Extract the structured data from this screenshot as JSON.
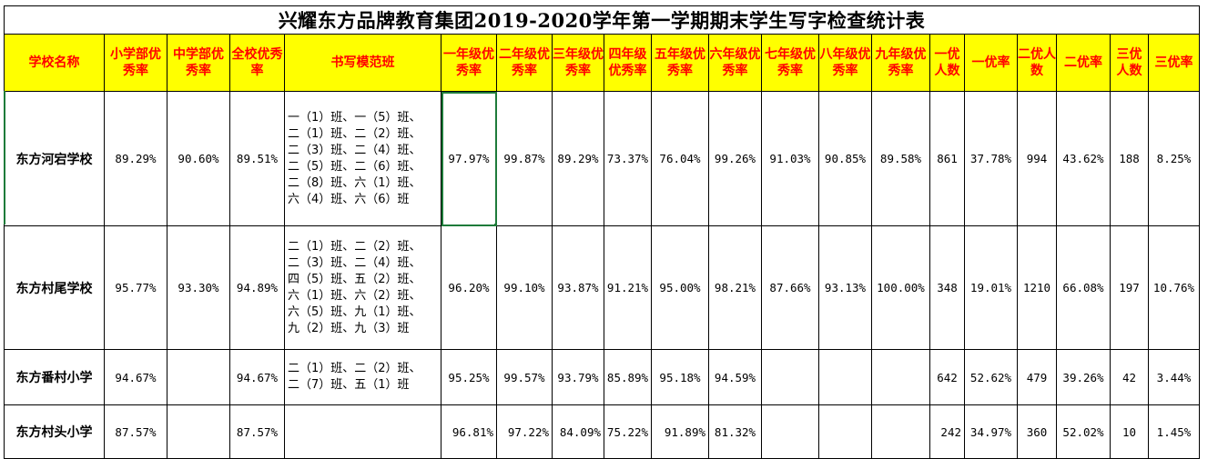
{
  "title": "兴耀东方品牌教育集团2019-2020学年第一学期期末学生写字检查统计表",
  "headers": [
    "学校名称",
    "小学部优秀率",
    "中学部优秀率",
    "全校优秀率",
    "书写模范班",
    "一年级优秀率",
    "二年级优秀率",
    "三年级优秀率",
    "四年级优秀率",
    "五年级优秀率",
    "六年级优秀率",
    "七年级优秀率",
    "八年级优秀率",
    "九年级优秀率",
    "一优人数",
    "一优率",
    "二优人数",
    "二优率",
    "三优人数",
    "三优率"
  ],
  "rows": [
    {
      "school": "东方河宕学校",
      "primary": "89.29%",
      "middle": "90.60%",
      "whole": "89.51%",
      "classes": "一（1）班、一（5）班、\n二（1）班、二（2）班、\n二（3）班、二（4）班、\n二（5）班、二（6）班、\n二（8）班、六（1）班、\n六（4）班、六（6）班",
      "g1": "97.97%",
      "g2": "99.87%",
      "g3": "89.29%",
      "g4": "73.37%",
      "g5": "76.04%",
      "g6": "99.26%",
      "g7": "91.03%",
      "g8": "90.85%",
      "g9": "89.58%",
      "n1": "861",
      "r1": "37.78%",
      "n2": "994",
      "r2": "43.62%",
      "n3": "188",
      "r3": "8.25%"
    },
    {
      "school": "东方村尾学校",
      "primary": "95.77%",
      "middle": "93.30%",
      "whole": "94.89%",
      "classes": "二（1）班、二（2）班、\n二（3）班、二（4）班、\n四（5）班、五（2）班、\n六（1）班、六（2）班、\n六（5）班、九（1）班、\n九（2）班、九（3）班",
      "g1": "96.20%",
      "g2": "99.10%",
      "g3": "93.87%",
      "g4": "91.21%",
      "g5": "95.00%",
      "g6": "98.21%",
      "g7": "87.66%",
      "g8": "93.13%",
      "g9": "100.00%",
      "n1": "348",
      "r1": "19.01%",
      "n2": "1210",
      "r2": "66.08%",
      "n3": "197",
      "r3": "10.76%"
    },
    {
      "school": "东方番村小学",
      "primary": "94.67%",
      "middle": "",
      "whole": "94.67%",
      "classes": "二（1）班、二（2）班、\n二（7）班、五（1）班",
      "g1": "95.25%",
      "g2": "99.57%",
      "g3": "93.79%",
      "g4": "85.89%",
      "g5": "95.18%",
      "g6": "94.59%",
      "g7": "",
      "g8": "",
      "g9": "",
      "n1": "642",
      "r1": "52.62%",
      "n2": "479",
      "r2": "39.26%",
      "n3": "42",
      "r3": "3.44%"
    },
    {
      "school": "东方村头小学",
      "primary": "87.57%",
      "middle": "",
      "whole": "87.57%",
      "classes": "",
      "g1": "96.81%",
      "g2": "97.22%",
      "g3": "84.09%",
      "g4": "75.22%",
      "g5": "91.89%",
      "g6": "81.32%",
      "g7": "",
      "g8": "",
      "g9": "",
      "n1": "242",
      "r1": "34.97%",
      "n2": "360",
      "r2": "52.02%",
      "n3": "10",
      "r3": "1.45%"
    }
  ]
}
